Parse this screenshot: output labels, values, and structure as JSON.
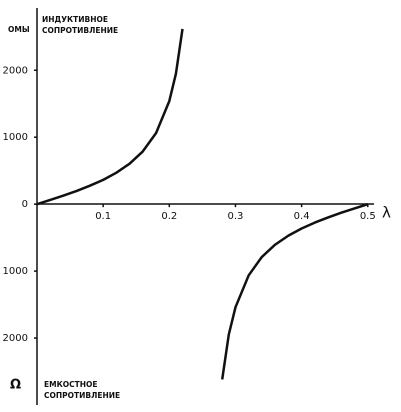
{
  "chart_data": {
    "type": "line",
    "y_unit": "ОМЫ",
    "y_symbol": "Ω",
    "annotation_top": [
      "ИНДУКТИВНОЕ",
      "СОПРОТИВЛЕНИЕ"
    ],
    "annotation_bottom": [
      "ЕМКОСТНОЕ",
      "СОПРОТИВЛЕНИЕ"
    ],
    "x_label": "λ",
    "xlim": [
      0,
      0.52
    ],
    "xticks": [
      0.1,
      0.2,
      0.3,
      0.4,
      0.5
    ],
    "ylim": [
      -3000,
      2900
    ],
    "yticks": [
      {
        "value": -2000,
        "label": "2000"
      },
      {
        "value": -1000,
        "label": "1000"
      },
      0,
      1000,
      2000
    ],
    "grid": false,
    "color": "#111111",
    "series": [
      {
        "x": [
          0,
          0.02,
          0.04,
          0.06,
          0.08,
          0.1,
          0.12,
          0.14,
          0.16,
          0.18,
          0.2,
          0.21,
          0.22
        ],
        "values": [
          0,
          63,
          128,
          198,
          275,
          363,
          470,
          604,
          788,
          1063,
          1539,
          1947,
          2618
        ]
      },
      {
        "x": [
          0.28,
          0.29,
          0.3,
          0.32,
          0.34,
          0.36,
          0.38,
          0.4,
          0.42,
          0.44,
          0.46,
          0.48,
          0.5
        ],
        "values": [
          -2618,
          -1947,
          -1539,
          -1063,
          -788,
          -604,
          -470,
          -363,
          -275,
          -198,
          -128,
          -63,
          0
        ]
      }
    ]
  }
}
